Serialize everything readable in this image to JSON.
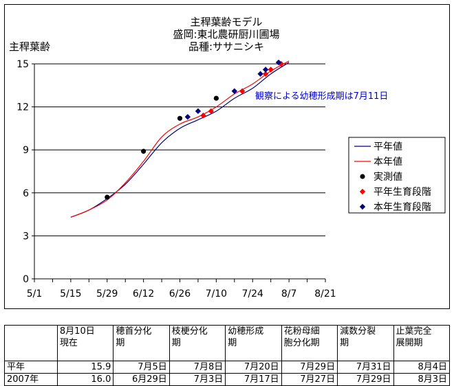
{
  "chart_data": {
    "type": "line",
    "title_lines": [
      "主稈葉齢モデル",
      "盛岡:東北農研厨川圃場",
      "品種:ササニシキ"
    ],
    "ylabel": "主稈葉齢",
    "xlabel": "",
    "x_ticks": [
      "5/1",
      "5/15",
      "5/29",
      "6/12",
      "6/26",
      "7/10",
      "7/24",
      "8/7",
      "8/21"
    ],
    "y_ticks": [
      "0",
      "3",
      "6",
      "9",
      "12",
      "15"
    ],
    "x_range_days": [
      0,
      112
    ],
    "ylim": [
      0,
      15
    ],
    "grid": "horizontal",
    "legend_position": "right",
    "annotation": "観察による幼穂形成期は7月11日",
    "series": [
      {
        "name": "平年値",
        "kind": "line",
        "color": "#000080",
        "points": [
          [
            14,
            4.3
          ],
          [
            21,
            4.8
          ],
          [
            28,
            5.6
          ],
          [
            35,
            6.6
          ],
          [
            42,
            8.0
          ],
          [
            49,
            9.5
          ],
          [
            56,
            10.5
          ],
          [
            63,
            11.1
          ],
          [
            70,
            11.7
          ],
          [
            77,
            12.6
          ],
          [
            84,
            13.3
          ],
          [
            91,
            14.3
          ],
          [
            98,
            15.1
          ]
        ]
      },
      {
        "name": "本年値",
        "kind": "line",
        "color": "#ff0000",
        "points": [
          [
            14,
            4.3
          ],
          [
            21,
            4.8
          ],
          [
            28,
            5.5
          ],
          [
            35,
            6.7
          ],
          [
            42,
            8.2
          ],
          [
            49,
            9.9
          ],
          [
            56,
            10.8
          ],
          [
            63,
            11.3
          ],
          [
            70,
            12.0
          ],
          [
            77,
            12.9
          ],
          [
            84,
            13.6
          ],
          [
            91,
            14.5
          ],
          [
            98,
            15.2
          ]
        ]
      },
      {
        "name": "実測値",
        "kind": "marker",
        "marker": "circle",
        "color": "#000000",
        "points": [
          [
            28,
            5.7
          ],
          [
            42,
            8.9
          ],
          [
            56,
            11.2
          ],
          [
            70,
            12.6
          ]
        ]
      },
      {
        "name": "平年生育段階",
        "kind": "marker",
        "marker": "diamond",
        "color": "#ff0000",
        "points": [
          [
            65,
            11.4
          ],
          [
            68,
            11.7
          ],
          [
            80,
            13.1
          ],
          [
            89,
            14.3
          ],
          [
            91,
            14.6
          ],
          [
            95,
            15.0
          ]
        ]
      },
      {
        "name": "本年生育段階",
        "kind": "marker",
        "marker": "diamond",
        "color": "#000080",
        "points": [
          [
            59,
            11.3
          ],
          [
            63,
            11.7
          ],
          [
            77,
            13.1
          ],
          [
            87,
            14.3
          ],
          [
            89,
            14.6
          ],
          [
            94,
            15.1
          ]
        ]
      }
    ]
  },
  "table": {
    "header": [
      {
        "lines": [
          "",
          ""
        ]
      },
      {
        "lines": [
          "8月10日",
          "現在"
        ]
      },
      {
        "lines": [
          "穂首分化",
          "期"
        ]
      },
      {
        "lines": [
          "枝梗分化",
          "期"
        ]
      },
      {
        "lines": [
          "幼穂形成",
          "期"
        ]
      },
      {
        "lines": [
          "花粉母細",
          "胞分化期"
        ]
      },
      {
        "lines": [
          "減数分裂",
          "期"
        ]
      },
      {
        "lines": [
          "止葉完全",
          "展開期"
        ]
      }
    ],
    "rows": [
      {
        "label": "平年",
        "cells": [
          "15.9",
          "7月5日",
          "7月8日",
          "7月20日",
          "7月29日",
          "7月31日",
          "8月4日"
        ]
      },
      {
        "label": "2007年",
        "cells": [
          "16.0",
          "6月29日",
          "7月3日",
          "7月17日",
          "7月27日",
          "7月29日",
          "8月3日"
        ]
      }
    ]
  }
}
